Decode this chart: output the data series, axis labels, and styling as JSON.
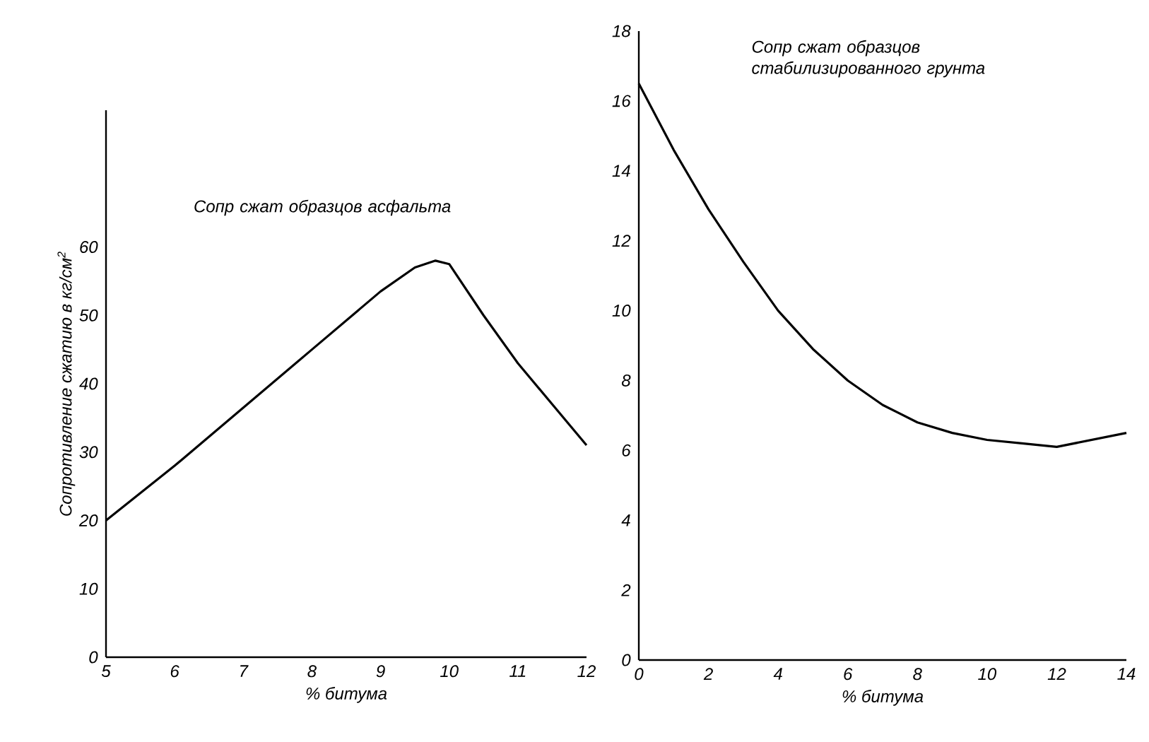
{
  "chart_data": [
    {
      "type": "line",
      "title": "Сопр сжат образцов асфальта",
      "xlabel": "% битума",
      "ylabel": "Сопротивление сжатию в кг/см$^{2}$",
      "xlim": [
        5,
        12
      ],
      "ylim": [
        0,
        80
      ],
      "xticks": [
        5,
        6,
        7,
        8,
        9,
        10,
        11,
        12
      ],
      "yticks": [
        0,
        10,
        20,
        30,
        40,
        50,
        60
      ],
      "series": [
        {
          "color": "#000000",
          "x": [
            5,
            6,
            7,
            8,
            9,
            9.5,
            9.8,
            10,
            10.5,
            11,
            11.5,
            12
          ],
          "values": [
            20,
            28,
            36.5,
            45,
            53.5,
            57,
            58,
            57.5,
            50,
            43,
            37,
            31
          ]
        }
      ]
    },
    {
      "type": "line",
      "title": "Сопр сжат образцов стабилизированного грунта",
      "xlabel": "% битума",
      "xlim": [
        0,
        14
      ],
      "ylim": [
        0,
        18
      ],
      "xticks": [
        0,
        2,
        4,
        6,
        8,
        10,
        12,
        14
      ],
      "yticks": [
        0,
        2,
        4,
        6,
        8,
        10,
        12,
        14,
        16,
        18
      ],
      "series": [
        {
          "color": "#000000",
          "x": [
            0,
            1,
            2,
            3,
            4,
            5,
            6,
            7,
            8,
            9,
            10,
            11,
            12,
            13,
            14
          ],
          "values": [
            16.5,
            14.6,
            12.9,
            11.4,
            10,
            8.9,
            8,
            7.3,
            6.8,
            6.5,
            6.3,
            6.2,
            6.1,
            6.3,
            6.5
          ]
        }
      ]
    }
  ]
}
